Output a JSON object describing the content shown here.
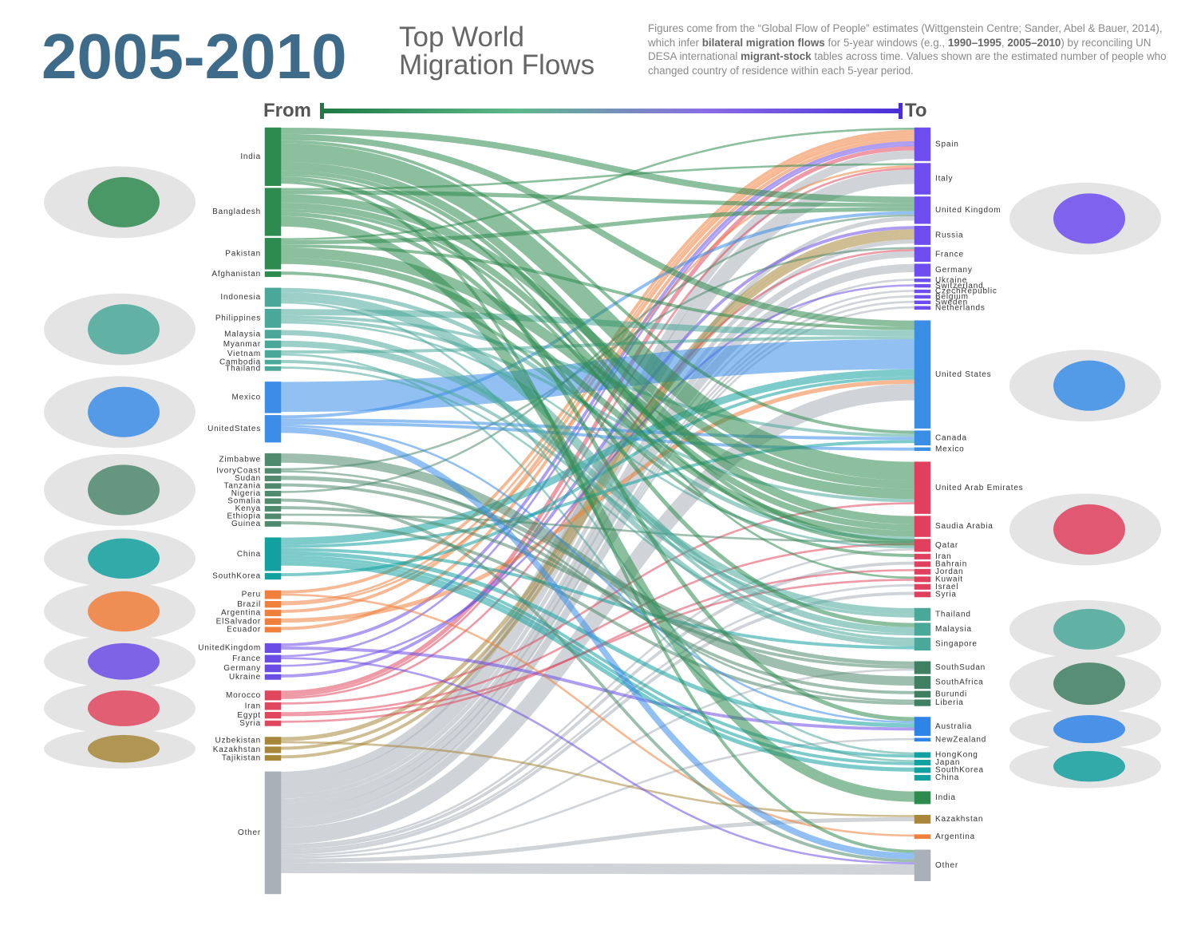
{
  "chart_data": {
    "type": "sankey",
    "title": "2005-2010",
    "subtitle": [
      "Top World",
      "Migration Flows"
    ],
    "description": [
      {
        "text": "Figures come from the “Global Flow of People” estimates (Wittgenstein Centre; Sander, Abel & Bauer, 2014), which infer ",
        "bold": false
      },
      {
        "text": "bilateral migration flows",
        "bold": true
      },
      {
        "text": " for 5-year windows (e.g., ",
        "bold": false
      },
      {
        "text": "1990–1995",
        "bold": true
      },
      {
        "text": ", ",
        "bold": false
      },
      {
        "text": "2005–2010",
        "bold": true
      },
      {
        "text": ") by reconciling UN DESA international ",
        "bold": false
      },
      {
        "text": "migrant-stock",
        "bold": true
      },
      {
        "text": " tables across time. Values shown are the estimated number of people who changed country of residence within each 5-year period.",
        "bold": false
      }
    ],
    "from_label": "From",
    "to_label": "To",
    "gradient": [
      "#1f7a45",
      "#5fb88a",
      "#8a6ce6",
      "#4a2fd8"
    ],
    "sources": [
      {
        "color": "#2e8b4f",
        "nodes": [
          {
            "name": "India",
            "value": 2.8
          },
          {
            "name": "Bangladesh",
            "value": 2.3
          },
          {
            "name": "Pakistan",
            "value": 1.5
          },
          {
            "name": "Afghanistan",
            "value": 0.25
          }
        ]
      },
      {
        "color": "#4aa89a",
        "nodes": [
          {
            "name": "Indonesia",
            "value": 0.9
          },
          {
            "name": "Philippines",
            "value": 0.9
          },
          {
            "name": "Malaysia",
            "value": 0.4
          },
          {
            "name": "Myanmar",
            "value": 0.35
          },
          {
            "name": "Vietnam",
            "value": 0.35
          },
          {
            "name": "Cambodia",
            "value": 0.2
          },
          {
            "name": "Thailand",
            "value": 0.2
          }
        ]
      },
      {
        "color": "#3b8de8",
        "nodes": [
          {
            "name": "Mexico",
            "value": 1.5
          },
          {
            "name": "UnitedStates",
            "value": 1.3
          }
        ]
      },
      {
        "color": "#4f8a6e",
        "nodes": [
          {
            "name": "Zimbabwe",
            "value": 0.6
          },
          {
            "name": "IvoryCoast",
            "value": 0.25
          },
          {
            "name": "Sudan",
            "value": 0.25
          },
          {
            "name": "Tanzania",
            "value": 0.25
          },
          {
            "name": "Nigeria",
            "value": 0.25
          },
          {
            "name": "Somalia",
            "value": 0.25
          },
          {
            "name": "Kenya",
            "value": 0.25
          },
          {
            "name": "Ethiopia",
            "value": 0.25
          },
          {
            "name": "Guinea",
            "value": 0.25
          }
        ]
      },
      {
        "color": "#13a0a0",
        "nodes": [
          {
            "name": "China",
            "value": 1.6
          },
          {
            "name": "SouthKorea",
            "value": 0.3
          }
        ]
      },
      {
        "color": "#f07f3c",
        "nodes": [
          {
            "name": "Peru",
            "value": 0.4
          },
          {
            "name": "Brazil",
            "value": 0.3
          },
          {
            "name": "Argentina",
            "value": 0.3
          },
          {
            "name": "ElSalvador",
            "value": 0.3
          },
          {
            "name": "Ecuador",
            "value": 0.25
          }
        ]
      },
      {
        "color": "#6b4de6",
        "nodes": [
          {
            "name": "UnitedKingdom",
            "value": 0.45
          },
          {
            "name": "France",
            "value": 0.35
          },
          {
            "name": "Germany",
            "value": 0.35
          },
          {
            "name": "Ukraine",
            "value": 0.25
          }
        ]
      },
      {
        "color": "#e0475f",
        "nodes": [
          {
            "name": "Morocco",
            "value": 0.45
          },
          {
            "name": "Iran",
            "value": 0.35
          },
          {
            "name": "Egypt",
            "value": 0.3
          },
          {
            "name": "Syria",
            "value": 0.25
          }
        ]
      },
      {
        "color": "#a8873a",
        "nodes": [
          {
            "name": "Uzbekistan",
            "value": 0.35
          },
          {
            "name": "Kazakhstan",
            "value": 0.3
          },
          {
            "name": "Tajikistan",
            "value": 0.25
          }
        ]
      },
      {
        "color": "#aab0b8",
        "nodes": [
          {
            "name": "Other",
            "value": 5.9
          }
        ]
      }
    ],
    "targets": [
      {
        "color": "#6d4cf0",
        "nodes": [
          {
            "name": "Spain",
            "value": 1.6
          },
          {
            "name": "Italy",
            "value": 1.5
          },
          {
            "name": "United Kingdom",
            "value": 1.3
          },
          {
            "name": "Russia",
            "value": 0.9
          },
          {
            "name": "France",
            "value": 0.7
          },
          {
            "name": "Germany",
            "value": 0.6
          },
          {
            "name": "Ukraine",
            "value": 0.15
          },
          {
            "name": "Switzerland",
            "value": 0.15
          },
          {
            "name": "CzechRepublic",
            "value": 0.15
          },
          {
            "name": "Belgium",
            "value": 0.15
          },
          {
            "name": "Sweden",
            "value": 0.15
          },
          {
            "name": "Netherlands",
            "value": 0.15
          }
        ]
      },
      {
        "color": "#3a8ee6",
        "nodes": [
          {
            "name": "United States",
            "value": 5.2
          },
          {
            "name": "Canada",
            "value": 0.7
          },
          {
            "name": "Mexico",
            "value": 0.15
          }
        ]
      },
      {
        "color": "#e0405e",
        "nodes": [
          {
            "name": "United Arab Emirates",
            "value": 2.5
          },
          {
            "name": "Saudia Arabia",
            "value": 1.0
          },
          {
            "name": "Qatar",
            "value": 0.6
          },
          {
            "name": "Iran",
            "value": 0.25
          },
          {
            "name": "Bahrain",
            "value": 0.25
          },
          {
            "name": "Jordan",
            "value": 0.25
          },
          {
            "name": "Kuwait",
            "value": 0.25
          },
          {
            "name": "Israel",
            "value": 0.25
          },
          {
            "name": "Syria",
            "value": 0.25
          }
        ]
      },
      {
        "color": "#4aa89a",
        "nodes": [
          {
            "name": "Thailand",
            "value": 0.6
          },
          {
            "name": "Malaysia",
            "value": 0.6
          },
          {
            "name": "Singapore",
            "value": 0.6
          }
        ]
      },
      {
        "color": "#3f7f62",
        "nodes": [
          {
            "name": "SouthSudan",
            "value": 0.6
          },
          {
            "name": "SouthAfrica",
            "value": 0.6
          },
          {
            "name": "Burundi",
            "value": 0.3
          },
          {
            "name": "Liberia",
            "value": 0.3
          }
        ]
      },
      {
        "color": "#2f84e8",
        "nodes": [
          {
            "name": "Australia",
            "value": 0.9
          },
          {
            "name": "NewZealand",
            "value": 0.15
          }
        ]
      },
      {
        "color": "#13a0a0",
        "nodes": [
          {
            "name": "HongKong",
            "value": 0.25
          },
          {
            "name": "Japan",
            "value": 0.25
          },
          {
            "name": "SouthKorea",
            "value": 0.25
          },
          {
            "name": "China",
            "value": 0.25
          }
        ]
      },
      {
        "color": "#2e8b4f",
        "nodes": [
          {
            "name": "India",
            "value": 0.6
          }
        ]
      },
      {
        "color": "#a8873a",
        "nodes": [
          {
            "name": "Kazakhstan",
            "value": 0.4
          }
        ]
      },
      {
        "color": "#f07f3c",
        "nodes": [
          {
            "name": "Argentina",
            "value": 0.2
          }
        ]
      },
      {
        "color": "#aab0b8",
        "nodes": [
          {
            "name": "Other",
            "value": 1.5
          }
        ]
      }
    ],
    "links": [
      {
        "from": "India",
        "to": "United Arab Emirates",
        "value": 0.9
      },
      {
        "from": "India",
        "to": "Saudia Arabia",
        "value": 0.4
      },
      {
        "from": "India",
        "to": "Qatar",
        "value": 0.2
      },
      {
        "from": "India",
        "to": "United States",
        "value": 0.3
      },
      {
        "from": "India",
        "to": "United Kingdom",
        "value": 0.3
      },
      {
        "from": "India",
        "to": "Kuwait",
        "value": 0.1
      },
      {
        "from": "India",
        "to": "Canada",
        "value": 0.15
      },
      {
        "from": "India",
        "to": "Australia",
        "value": 0.2
      },
      {
        "from": "India",
        "to": "Other",
        "value": 0.15
      },
      {
        "from": "Bangladesh",
        "to": "India",
        "value": 0.5
      },
      {
        "from": "Bangladesh",
        "to": "United Arab Emirates",
        "value": 0.4
      },
      {
        "from": "Bangladesh",
        "to": "Saudia Arabia",
        "value": 0.3
      },
      {
        "from": "Bangladesh",
        "to": "Italy",
        "value": 0.1
      },
      {
        "from": "Bangladesh",
        "to": "United Kingdom",
        "value": 0.2
      },
      {
        "from": "Bangladesh",
        "to": "Qatar",
        "value": 0.15
      },
      {
        "from": "Bangladesh",
        "to": "Malaysia",
        "value": 0.2
      },
      {
        "from": "Pakistan",
        "to": "United Arab Emirates",
        "value": 0.5
      },
      {
        "from": "Pakistan",
        "to": "Saudia Arabia",
        "value": 0.3
      },
      {
        "from": "Pakistan",
        "to": "United Kingdom",
        "value": 0.2
      },
      {
        "from": "Pakistan",
        "to": "Spain",
        "value": 0.1
      },
      {
        "from": "Pakistan",
        "to": "United States",
        "value": 0.15
      },
      {
        "from": "Afghanistan",
        "to": "Iran",
        "value": 0.15
      },
      {
        "from": "Indonesia",
        "to": "Malaysia",
        "value": 0.3
      },
      {
        "from": "Indonesia",
        "to": "Saudia Arabia",
        "value": 0.2
      },
      {
        "from": "Indonesia",
        "to": "Singapore",
        "value": 0.15
      },
      {
        "from": "Indonesia",
        "to": "HongKong",
        "value": 0.1
      },
      {
        "from": "Philippines",
        "to": "United States",
        "value": 0.3
      },
      {
        "from": "Philippines",
        "to": "United Arab Emirates",
        "value": 0.15
      },
      {
        "from": "Philippines",
        "to": "Canada",
        "value": 0.15
      },
      {
        "from": "Philippines",
        "to": "Qatar",
        "value": 0.1
      },
      {
        "from": "Malaysia",
        "to": "Singapore",
        "value": 0.25
      },
      {
        "from": "Myanmar",
        "to": "Thailand",
        "value": 0.3
      },
      {
        "from": "Vietnam",
        "to": "United States",
        "value": 0.15
      },
      {
        "from": "Vietnam",
        "to": "Japan",
        "value": 0.1
      },
      {
        "from": "Cambodia",
        "to": "Thailand",
        "value": 0.15
      },
      {
        "from": "Thailand",
        "to": "Malaysia",
        "value": 0.1
      },
      {
        "from": "Mexico",
        "to": "United States",
        "value": 1.45
      },
      {
        "from": "UnitedStates",
        "to": "Mexico",
        "value": 0.15
      },
      {
        "from": "UnitedStates",
        "to": "Canada",
        "value": 0.15
      },
      {
        "from": "UnitedStates",
        "to": "United Kingdom",
        "value": 0.15
      },
      {
        "from": "UnitedStates",
        "to": "Australia",
        "value": 0.1
      },
      {
        "from": "UnitedStates",
        "to": "Other",
        "value": 0.3
      },
      {
        "from": "Zimbabwe",
        "to": "SouthAfrica",
        "value": 0.45
      },
      {
        "from": "IvoryCoast",
        "to": "France",
        "value": 0.1
      },
      {
        "from": "IvoryCoast",
        "to": "Liberia",
        "value": 0.1
      },
      {
        "from": "Sudan",
        "to": "SouthSudan",
        "value": 0.2
      },
      {
        "from": "Tanzania",
        "to": "Burundi",
        "value": 0.15
      },
      {
        "from": "Nigeria",
        "to": "United Kingdom",
        "value": 0.1
      },
      {
        "from": "Somalia",
        "to": "Other",
        "value": 0.15
      },
      {
        "from": "Kenya",
        "to": "SouthSudan",
        "value": 0.15
      },
      {
        "from": "Ethiopia",
        "to": "Saudia Arabia",
        "value": 0.1
      },
      {
        "from": "Guinea",
        "to": "Liberia",
        "value": 0.15
      },
      {
        "from": "China",
        "to": "United States",
        "value": 0.35
      },
      {
        "from": "China",
        "to": "HongKong",
        "value": 0.15
      },
      {
        "from": "China",
        "to": "Japan",
        "value": 0.15
      },
      {
        "from": "China",
        "to": "SouthKorea",
        "value": 0.2
      },
      {
        "from": "China",
        "to": "Canada",
        "value": 0.15
      },
      {
        "from": "China",
        "to": "Australia",
        "value": 0.2
      },
      {
        "from": "China",
        "to": "Singapore",
        "value": 0.15
      },
      {
        "from": "SouthKorea",
        "to": "United States",
        "value": 0.15
      },
      {
        "from": "Peru",
        "to": "Spain",
        "value": 0.15
      },
      {
        "from": "Peru",
        "to": "Argentina",
        "value": 0.1
      },
      {
        "from": "Brazil",
        "to": "Spain",
        "value": 0.1
      },
      {
        "from": "Brazil",
        "to": "Italy",
        "value": 0.1
      },
      {
        "from": "Argentina",
        "to": "Spain",
        "value": 0.15
      },
      {
        "from": "ElSalvador",
        "to": "United States",
        "value": 0.2
      },
      {
        "from": "Ecuador",
        "to": "Spain",
        "value": 0.15
      },
      {
        "from": "UnitedKingdom",
        "to": "Spain",
        "value": 0.15
      },
      {
        "from": "UnitedKingdom",
        "to": "Australia",
        "value": 0.15
      },
      {
        "from": "France",
        "to": "Spain",
        "value": 0.1
      },
      {
        "from": "France",
        "to": "Other",
        "value": 0.1
      },
      {
        "from": "Germany",
        "to": "Switzerland",
        "value": 0.1
      },
      {
        "from": "Ukraine",
        "to": "Russia",
        "value": 0.15
      },
      {
        "from": "Morocco",
        "to": "Spain",
        "value": 0.2
      },
      {
        "from": "Morocco",
        "to": "Italy",
        "value": 0.1
      },
      {
        "from": "Morocco",
        "to": "France",
        "value": 0.1
      },
      {
        "from": "Iran",
        "to": "United Arab Emirates",
        "value": 0.1
      },
      {
        "from": "Egypt",
        "to": "Saudia Arabia",
        "value": 0.1
      },
      {
        "from": "Egypt",
        "to": "Kuwait",
        "value": 0.1
      },
      {
        "from": "Syria",
        "to": "Jordan",
        "value": 0.1
      },
      {
        "from": "Uzbekistan",
        "to": "Russia",
        "value": 0.2
      },
      {
        "from": "Uzbekistan",
        "to": "Kazakhstan",
        "value": 0.1
      },
      {
        "from": "Kazakhstan",
        "to": "Russia",
        "value": 0.15
      },
      {
        "from": "Tajikistan",
        "to": "Russia",
        "value": 0.15
      },
      {
        "from": "Other",
        "to": "Spain",
        "value": 0.4
      },
      {
        "from": "Other",
        "to": "Italy",
        "value": 0.7
      },
      {
        "from": "Other",
        "to": "United Kingdom",
        "value": 0.2
      },
      {
        "from": "Other",
        "to": "Russia",
        "value": 0.2
      },
      {
        "from": "Other",
        "to": "France",
        "value": 0.3
      },
      {
        "from": "Other",
        "to": "Germany",
        "value": 0.4
      },
      {
        "from": "Other",
        "to": "Ukraine",
        "value": 0.1
      },
      {
        "from": "Other",
        "to": "CzechRepublic",
        "value": 0.1
      },
      {
        "from": "Other",
        "to": "Belgium",
        "value": 0.1
      },
      {
        "from": "Other",
        "to": "Sweden",
        "value": 0.1
      },
      {
        "from": "Other",
        "to": "Netherlands",
        "value": 0.1
      },
      {
        "from": "Other",
        "to": "United States",
        "value": 0.8
      },
      {
        "from": "Other",
        "to": "Bahrain",
        "value": 0.15
      },
      {
        "from": "Other",
        "to": "Israel",
        "value": 0.1
      },
      {
        "from": "Other",
        "to": "Syria",
        "value": 0.15
      },
      {
        "from": "Other",
        "to": "Kazakhstan",
        "value": 0.2
      },
      {
        "from": "Other",
        "to": "NewZealand",
        "value": 0.1
      },
      {
        "from": "Other",
        "to": "SouthSudan",
        "value": 0.1
      },
      {
        "from": "Other",
        "to": "Qatar",
        "value": 0.1
      },
      {
        "from": "Other",
        "to": "Other",
        "value": 0.5
      }
    ]
  }
}
